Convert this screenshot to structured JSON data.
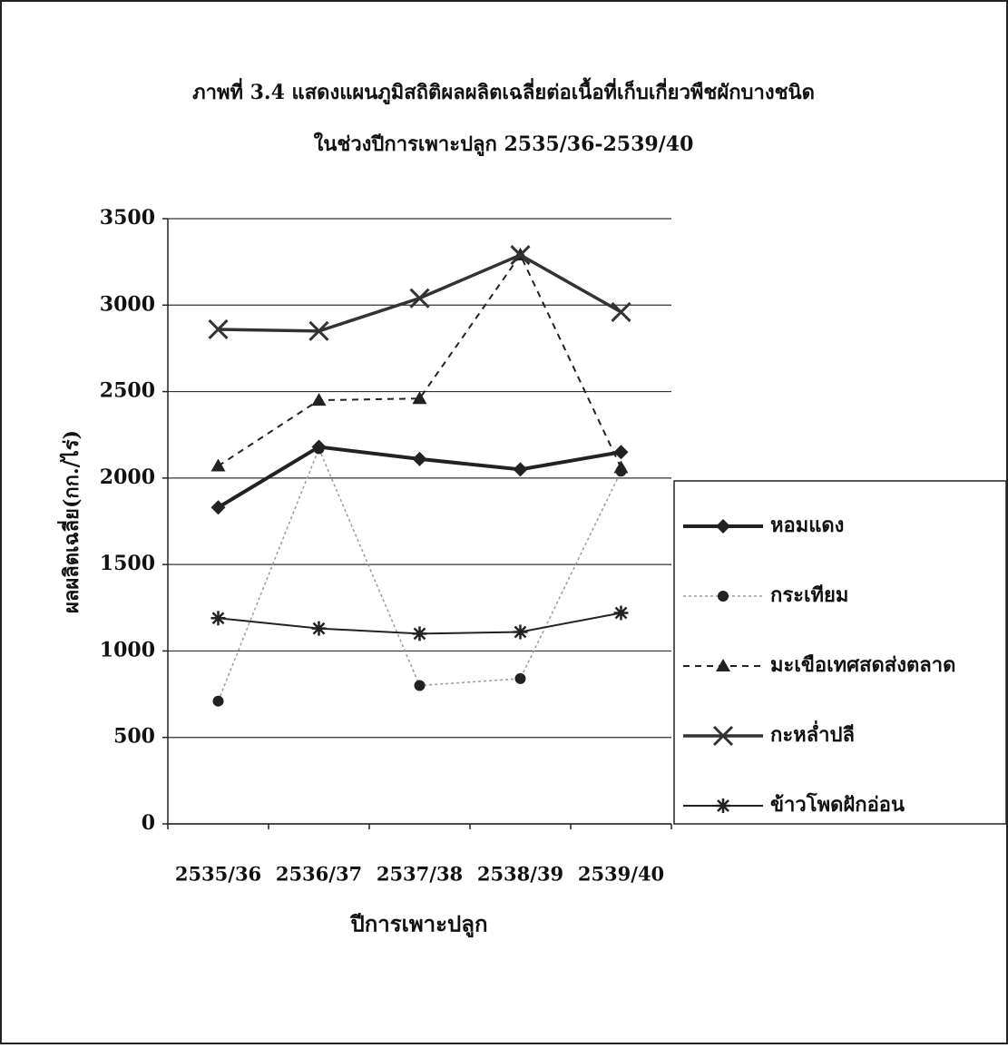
{
  "chart_data": {
    "type": "line",
    "title": "ภาพที่ 3.4 แสดงแผนภูมิสถิติผลผลิตเฉลี่ยต่อเนื้อที่เก็บเกี่ยวพืชผักบางชนิด",
    "subtitle": "ในช่วงปีการเพาะปลูก 2535/36-2539/40",
    "x_label": "ปีการเพาะปลูก",
    "y_label": "ผลผลิตเฉลี่ย(กก./ไร่)",
    "categories": [
      "2535/36",
      "2536/37",
      "2537/38",
      "2538/39",
      "2539/40"
    ],
    "series": [
      {
        "name": "หอมแดง",
        "color": "#222222",
        "marker": "diamond",
        "dash": "solid",
        "width": 4,
        "values": [
          1830,
          2180,
          2110,
          2050,
          2150
        ]
      },
      {
        "name": "กระเทียม",
        "color": "#999999",
        "marker": "circle",
        "dash": "dotted",
        "width": 1.5,
        "values": [
          710,
          2170,
          800,
          840,
          2040
        ]
      },
      {
        "name": "มะเขือเทศสดส่งตลาด",
        "color": "#222222",
        "marker": "triangle",
        "dash": "dashed",
        "width": 2,
        "values": [
          2070,
          2450,
          2460,
          3290,
          2060
        ]
      },
      {
        "name": "กะหล่ำปลี",
        "color": "#333333",
        "marker": "x",
        "dash": "solid",
        "width": 3.5,
        "values": [
          2860,
          2850,
          3040,
          3290,
          2960
        ]
      },
      {
        "name": "ข้าวโพดฝักอ่อน",
        "color": "#222222",
        "marker": "asterisk",
        "dash": "solid",
        "width": 2,
        "values": [
          1190,
          1130,
          1100,
          1110,
          1220
        ]
      }
    ],
    "ylim": [
      0,
      3500
    ],
    "yticks": [
      0,
      500,
      1000,
      1500,
      2000,
      2500,
      3000,
      3500
    ],
    "grid": true,
    "legend": "right"
  }
}
